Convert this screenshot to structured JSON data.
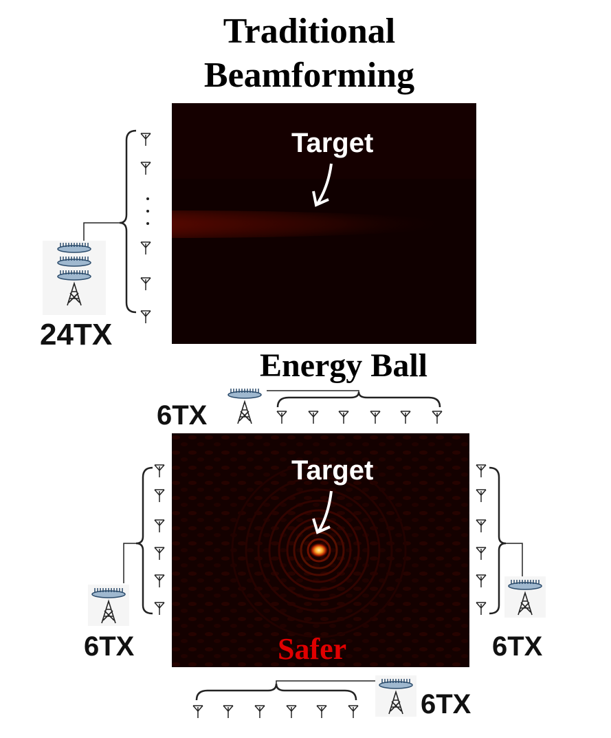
{
  "top": {
    "title_line1": "Traditional",
    "title_line2": "Beamforming",
    "target_label": "Target",
    "tx_label": "24TX"
  },
  "bottom": {
    "title": "Energy Ball",
    "target_label": "Target",
    "safer_label": "Safer",
    "tx_top": "6TX",
    "tx_left": "6TX",
    "tx_right": "6TX",
    "tx_bottom": "6TX"
  },
  "colors": {
    "heatmap_bg": "#100000",
    "hot": "#ffd070",
    "safer": "#e00000",
    "antenna": "#2a4a6a"
  },
  "icons": {
    "antenna": "antenna-icon",
    "tower": "tower-icon",
    "brace": "curly-brace",
    "arrow": "arrow-down-icon"
  }
}
